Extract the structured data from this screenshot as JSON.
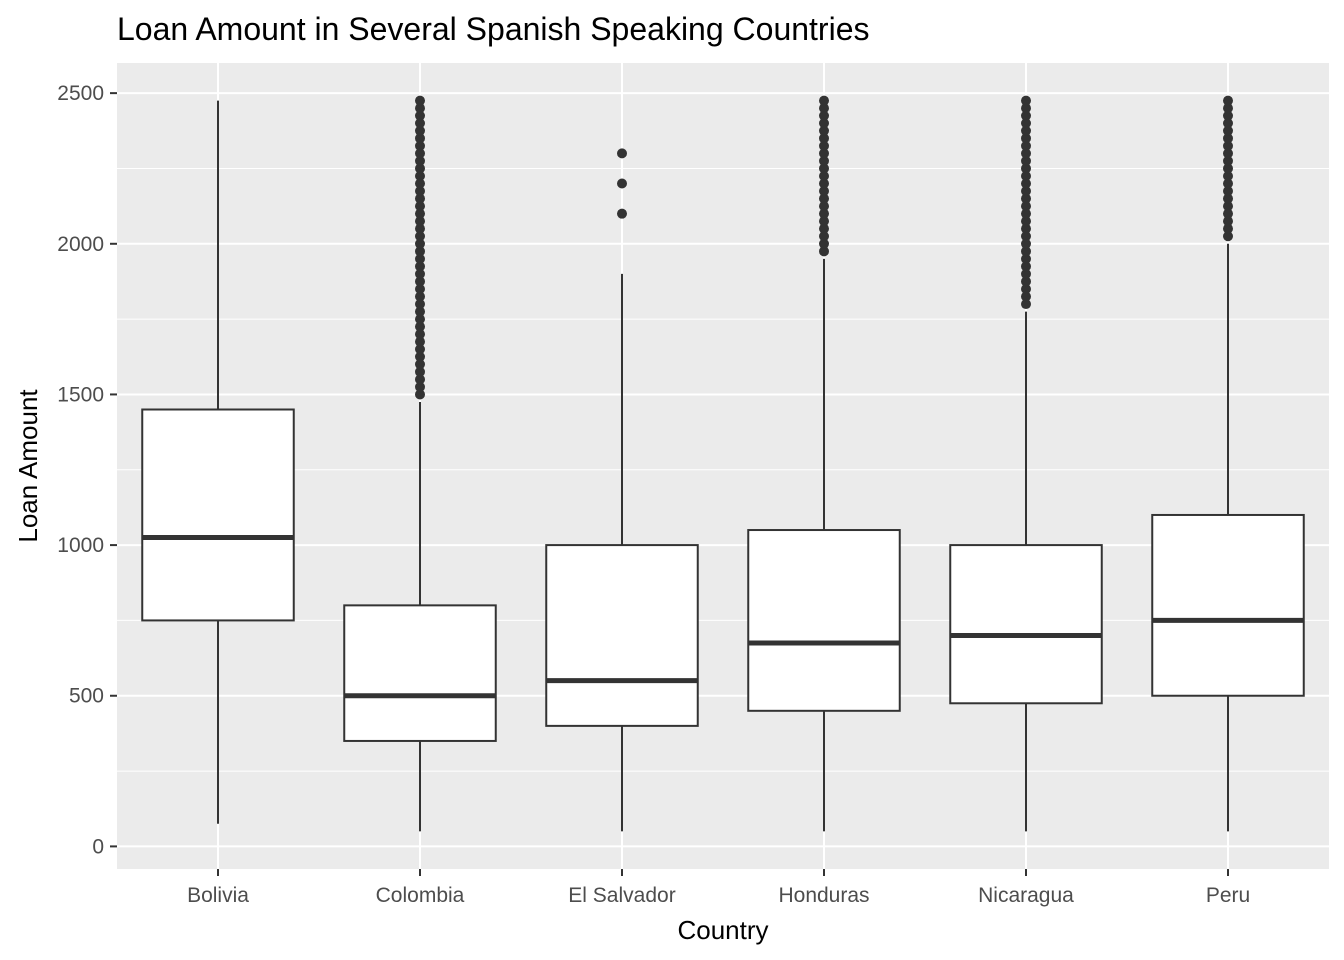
{
  "chart_data": {
    "type": "box",
    "title": "Loan Amount in Several Spanish Speaking Countries",
    "xlabel": "Country",
    "ylabel": "Loan Amount",
    "ylim": [
      -75,
      2600
    ],
    "yticks": [
      0,
      500,
      1000,
      1500,
      2000,
      2500
    ],
    "grid": true,
    "categories": [
      "Bolivia",
      "Colombia",
      "El Salvador",
      "Honduras",
      "Nicaragua",
      "Peru"
    ],
    "boxes": [
      {
        "category": "Bolivia",
        "whisker_low": 75,
        "q1": 750,
        "median": 1025,
        "q3": 1450,
        "whisker_high": 2475,
        "outliers": []
      },
      {
        "category": "Colombia",
        "whisker_low": 50,
        "q1": 350,
        "median": 500,
        "q3": 800,
        "whisker_high": 1475,
        "outliers": [
          1500,
          1525,
          1550,
          1575,
          1600,
          1625,
          1650,
          1675,
          1700,
          1725,
          1750,
          1775,
          1800,
          1825,
          1850,
          1875,
          1900,
          1925,
          1950,
          1975,
          2000,
          2025,
          2050,
          2075,
          2100,
          2125,
          2150,
          2175,
          2200,
          2225,
          2250,
          2275,
          2300,
          2325,
          2350,
          2375,
          2400,
          2425,
          2450,
          2475
        ]
      },
      {
        "category": "El Salvador",
        "whisker_low": 50,
        "q1": 400,
        "median": 550,
        "q3": 1000,
        "whisker_high": 1900,
        "outliers": [
          2100,
          2200,
          2300
        ]
      },
      {
        "category": "Honduras",
        "whisker_low": 50,
        "q1": 450,
        "median": 675,
        "q3": 1050,
        "whisker_high": 1950,
        "outliers": [
          1975,
          2000,
          2025,
          2050,
          2075,
          2100,
          2125,
          2150,
          2175,
          2200,
          2225,
          2250,
          2275,
          2300,
          2325,
          2350,
          2375,
          2400,
          2425,
          2450,
          2475
        ]
      },
      {
        "category": "Nicaragua",
        "whisker_low": 50,
        "q1": 475,
        "median": 700,
        "q3": 1000,
        "whisker_high": 1775,
        "outliers": [
          1800,
          1825,
          1850,
          1875,
          1900,
          1925,
          1950,
          1975,
          2000,
          2025,
          2050,
          2075,
          2100,
          2125,
          2150,
          2175,
          2200,
          2225,
          2250,
          2275,
          2300,
          2325,
          2350,
          2375,
          2400,
          2425,
          2450,
          2475
        ]
      },
      {
        "category": "Peru",
        "whisker_low": 50,
        "q1": 500,
        "median": 750,
        "q3": 1100,
        "whisker_high": 2000,
        "outliers": [
          2025,
          2050,
          2075,
          2100,
          2125,
          2150,
          2175,
          2200,
          2225,
          2250,
          2275,
          2300,
          2325,
          2350,
          2375,
          2400,
          2425,
          2450,
          2475
        ]
      }
    ],
    "colors": {
      "panel": "#ebebeb",
      "grid": "#ffffff",
      "box_fill": "#ffffff",
      "box_line": "#333333",
      "axis_text": "#4d4d4d",
      "tick": "#333333"
    }
  }
}
